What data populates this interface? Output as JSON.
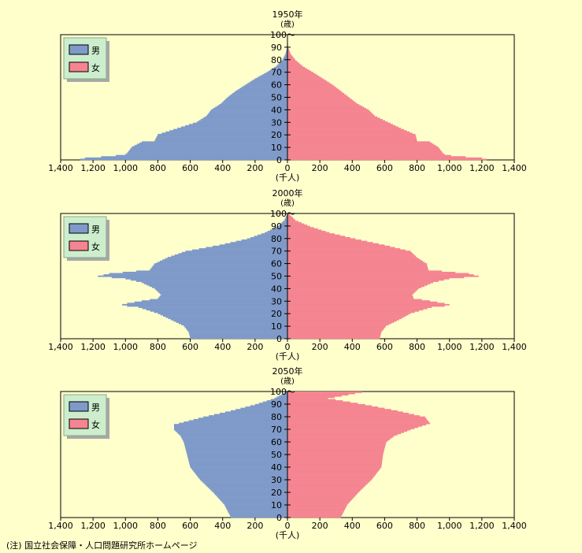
{
  "note": "(注) 国立社会保障・人口問題研究所ホームページ",
  "colors": {
    "male": "#7f9ac9",
    "female": "#f48591",
    "plot_bg": "#ffffcc",
    "legend_bg": "#cceecc",
    "legend_shadow": "#a8a8a8",
    "page_bg": "#ffffcc"
  },
  "chart_data": [
    {
      "type": "bar",
      "orientation": "horizontal",
      "title": "1950年",
      "age_unit_label": "(歳)",
      "xlabel": "(千人)",
      "xlim": [
        -1400,
        1400
      ],
      "x_ticks": [
        "1,400",
        "1,200",
        "1,000",
        "800",
        "600",
        "400",
        "200",
        "0",
        "200",
        "400",
        "600",
        "800",
        "1,000",
        "1,200",
        "1,400"
      ],
      "y_ticks": [
        "0",
        "10",
        "20",
        "30",
        "40",
        "50",
        "60",
        "70",
        "80",
        "90",
        "100〜"
      ],
      "legend": {
        "male": "男",
        "female": "女",
        "position": "top-left"
      },
      "series": [
        {
          "name": "男",
          "age_keypoints": [
            [
              0,
              1280
            ],
            [
              1,
              1250
            ],
            [
              2,
              1150
            ],
            [
              3,
              1060
            ],
            [
              4,
              1000
            ],
            [
              5,
              990
            ],
            [
              10,
              960
            ],
            [
              14,
              900
            ],
            [
              15,
              820
            ],
            [
              20,
              800
            ],
            [
              25,
              680
            ],
            [
              30,
              560
            ],
            [
              35,
              500
            ],
            [
              40,
              470
            ],
            [
              45,
              410
            ],
            [
              50,
              370
            ],
            [
              55,
              320
            ],
            [
              60,
              260
            ],
            [
              65,
              200
            ],
            [
              70,
              130
            ],
            [
              75,
              70
            ],
            [
              80,
              32
            ],
            [
              85,
              12
            ],
            [
              90,
              3
            ],
            [
              95,
              1
            ],
            [
              100,
              0
            ]
          ]
        },
        {
          "name": "女",
          "age_keypoints": [
            [
              0,
              1230
            ],
            [
              1,
              1200
            ],
            [
              2,
              1100
            ],
            [
              3,
              1010
            ],
            [
              4,
              970
            ],
            [
              5,
              960
            ],
            [
              10,
              930
            ],
            [
              14,
              880
            ],
            [
              15,
              800
            ],
            [
              20,
              790
            ],
            [
              25,
              700
            ],
            [
              30,
              620
            ],
            [
              35,
              540
            ],
            [
              40,
              500
            ],
            [
              45,
              430
            ],
            [
              50,
              380
            ],
            [
              55,
              330
            ],
            [
              60,
              280
            ],
            [
              65,
              220
            ],
            [
              70,
              160
            ],
            [
              75,
              95
            ],
            [
              80,
              50
            ],
            [
              85,
              20
            ],
            [
              90,
              6
            ],
            [
              95,
              1
            ],
            [
              100,
              0
            ]
          ]
        }
      ]
    },
    {
      "type": "bar",
      "orientation": "horizontal",
      "title": "2000年",
      "age_unit_label": "(歳)",
      "xlabel": "(千人)",
      "xlim": [
        -1400,
        1400
      ],
      "x_ticks": [
        "1,400",
        "1,200",
        "1,000",
        "800",
        "600",
        "400",
        "200",
        "0",
        "200",
        "400",
        "600",
        "800",
        "1,000",
        "1,200",
        "1,400"
      ],
      "y_ticks": [
        "0",
        "10",
        "20",
        "30",
        "40",
        "50",
        "60",
        "70",
        "80",
        "90",
        "100〜"
      ],
      "legend": {
        "male": "男",
        "female": "女",
        "position": "top-left"
      },
      "series": [
        {
          "name": "男",
          "age_keypoints": [
            [
              0,
              600
            ],
            [
              5,
              610
            ],
            [
              10,
              640
            ],
            [
              15,
              720
            ],
            [
              20,
              800
            ],
            [
              25,
              920
            ],
            [
              26,
              990
            ],
            [
              27,
              1020
            ],
            [
              28,
              990
            ],
            [
              30,
              900
            ],
            [
              32,
              800
            ],
            [
              35,
              780
            ],
            [
              40,
              820
            ],
            [
              45,
              900
            ],
            [
              48,
              1000
            ],
            [
              50,
              1170
            ],
            [
              52,
              1100
            ],
            [
              55,
              850
            ],
            [
              60,
              820
            ],
            [
              65,
              740
            ],
            [
              70,
              630
            ],
            [
              75,
              420
            ],
            [
              80,
              250
            ],
            [
              85,
              140
            ],
            [
              90,
              60
            ],
            [
              95,
              20
            ],
            [
              100,
              2
            ]
          ]
        },
        {
          "name": "女",
          "age_keypoints": [
            [
              0,
              570
            ],
            [
              5,
              580
            ],
            [
              10,
              610
            ],
            [
              15,
              690
            ],
            [
              20,
              760
            ],
            [
              25,
              890
            ],
            [
              26,
              970
            ],
            [
              27,
              1000
            ],
            [
              28,
              970
            ],
            [
              30,
              880
            ],
            [
              32,
              780
            ],
            [
              35,
              770
            ],
            [
              40,
              810
            ],
            [
              45,
              900
            ],
            [
              48,
              1000
            ],
            [
              50,
              1180
            ],
            [
              52,
              1120
            ],
            [
              55,
              870
            ],
            [
              60,
              860
            ],
            [
              65,
              800
            ],
            [
              70,
              760
            ],
            [
              75,
              600
            ],
            [
              80,
              420
            ],
            [
              85,
              260
            ],
            [
              90,
              140
            ],
            [
              95,
              50
            ],
            [
              100,
              10
            ]
          ]
        }
      ]
    },
    {
      "type": "bar",
      "orientation": "horizontal",
      "title": "2050年",
      "age_unit_label": "(歳)",
      "xlabel": "(千人)",
      "xlim": [
        -1400,
        1400
      ],
      "x_ticks": [
        "1,400",
        "1,200",
        "1,000",
        "800",
        "600",
        "400",
        "200",
        "0",
        "200",
        "400",
        "600",
        "800",
        "1,000",
        "1,200",
        "1,400"
      ],
      "y_ticks": [
        "0",
        "10",
        "20",
        "30",
        "40",
        "50",
        "60",
        "70",
        "80",
        "90",
        "100〜"
      ],
      "legend": {
        "male": "男",
        "female": "女",
        "position": "top-left"
      },
      "series": [
        {
          "name": "男",
          "age_keypoints": [
            [
              0,
              350
            ],
            [
              10,
              390
            ],
            [
              20,
              460
            ],
            [
              30,
              540
            ],
            [
              40,
              600
            ],
            [
              50,
              620
            ],
            [
              55,
              630
            ],
            [
              60,
              640
            ],
            [
              65,
              660
            ],
            [
              70,
              700
            ],
            [
              74,
              700
            ],
            [
              75,
              670
            ],
            [
              80,
              520
            ],
            [
              85,
              350
            ],
            [
              90,
              200
            ],
            [
              95,
              80
            ],
            [
              100,
              10
            ]
          ]
        },
        {
          "name": "女",
          "age_keypoints": [
            [
              0,
              330
            ],
            [
              10,
              370
            ],
            [
              20,
              440
            ],
            [
              30,
              520
            ],
            [
              40,
              580
            ],
            [
              50,
              590
            ],
            [
              55,
              600
            ],
            [
              60,
              610
            ],
            [
              65,
              660
            ],
            [
              70,
              760
            ],
            [
              75,
              880
            ],
            [
              80,
              850
            ],
            [
              85,
              680
            ],
            [
              90,
              480
            ],
            [
              95,
              250
            ],
            [
              100,
              460
            ]
          ]
        }
      ]
    }
  ]
}
